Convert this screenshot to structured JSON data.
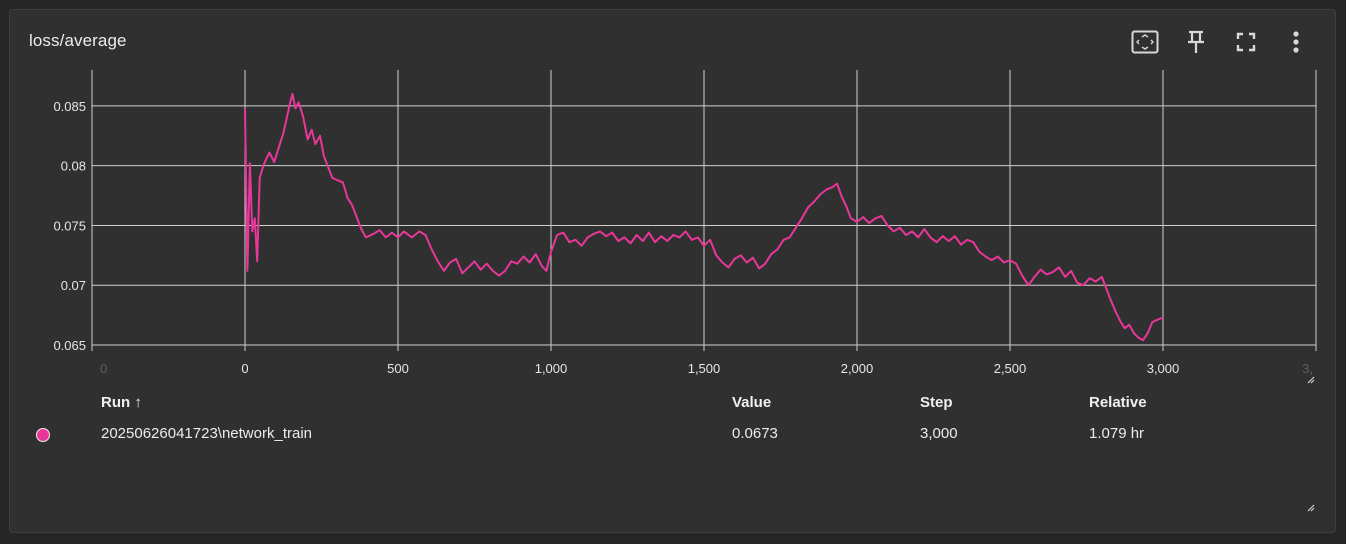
{
  "card": {
    "title": "loss/average"
  },
  "toolbar": {
    "buttons": [
      {
        "icon": "fit-domain-icon"
      },
      {
        "icon": "pin-icon"
      },
      {
        "icon": "fullscreen-icon"
      },
      {
        "icon": "more-vert-icon"
      }
    ]
  },
  "colors": {
    "series": "#e8369a",
    "background": "#303030",
    "grid": "#cfcfcf"
  },
  "chart_data": {
    "type": "line",
    "title": "loss/average",
    "xlabel": "",
    "ylabel": "",
    "xlim": [
      -500,
      3500
    ],
    "ylim": [
      0.0645,
      0.088
    ],
    "x_ticks": [
      0,
      500,
      1000,
      1500,
      2000,
      2500,
      3000
    ],
    "x_tick_labels": [
      "0",
      "500",
      "1,000",
      "1,500",
      "2,000",
      "2,500",
      "3,000"
    ],
    "x_edge_labels": [
      "0",
      "3,"
    ],
    "y_ticks": [
      0.065,
      0.07,
      0.075,
      0.08,
      0.085
    ],
    "y_tick_labels": [
      "0.065",
      "0.07",
      "0.075",
      "0.08",
      "0.085"
    ],
    "grid": true,
    "series": [
      {
        "name": "20250626041723\\network_train",
        "color": "#e8369a",
        "points": [
          [
            0,
            0.0848
          ],
          [
            8,
            0.0712
          ],
          [
            16,
            0.0802
          ],
          [
            24,
            0.0745
          ],
          [
            32,
            0.0756
          ],
          [
            40,
            0.072
          ],
          [
            48,
            0.079
          ],
          [
            60,
            0.08
          ],
          [
            70,
            0.0806
          ],
          [
            80,
            0.0811
          ],
          [
            95,
            0.0803
          ],
          [
            110,
            0.0815
          ],
          [
            125,
            0.0827
          ],
          [
            135,
            0.0838
          ],
          [
            145,
            0.085
          ],
          [
            155,
            0.086
          ],
          [
            165,
            0.0848
          ],
          [
            175,
            0.0853
          ],
          [
            190,
            0.0841
          ],
          [
            205,
            0.0822
          ],
          [
            218,
            0.083
          ],
          [
            230,
            0.0818
          ],
          [
            245,
            0.0825
          ],
          [
            258,
            0.0808
          ],
          [
            270,
            0.08
          ],
          [
            285,
            0.079
          ],
          [
            300,
            0.0788
          ],
          [
            320,
            0.0786
          ],
          [
            335,
            0.0773
          ],
          [
            350,
            0.0767
          ],
          [
            365,
            0.0757
          ],
          [
            380,
            0.0747
          ],
          [
            395,
            0.074
          ],
          [
            420,
            0.0743
          ],
          [
            440,
            0.0746
          ],
          [
            460,
            0.074
          ],
          [
            480,
            0.0744
          ],
          [
            500,
            0.074
          ],
          [
            520,
            0.0745
          ],
          [
            545,
            0.074
          ],
          [
            570,
            0.0745
          ],
          [
            590,
            0.0742
          ],
          [
            610,
            0.073
          ],
          [
            630,
            0.072
          ],
          [
            650,
            0.0712
          ],
          [
            670,
            0.0719
          ],
          [
            690,
            0.0722
          ],
          [
            710,
            0.071
          ],
          [
            730,
            0.0715
          ],
          [
            750,
            0.072
          ],
          [
            770,
            0.0713
          ],
          [
            790,
            0.0718
          ],
          [
            810,
            0.0712
          ],
          [
            830,
            0.0708
          ],
          [
            850,
            0.0712
          ],
          [
            870,
            0.072
          ],
          [
            890,
            0.0718
          ],
          [
            910,
            0.0724
          ],
          [
            930,
            0.0719
          ],
          [
            950,
            0.0726
          ],
          [
            970,
            0.0716
          ],
          [
            985,
            0.0712
          ],
          [
            1000,
            0.0728
          ],
          [
            1020,
            0.0742
          ],
          [
            1040,
            0.0744
          ],
          [
            1060,
            0.0736
          ],
          [
            1080,
            0.0738
          ],
          [
            1100,
            0.0733
          ],
          [
            1120,
            0.074
          ],
          [
            1140,
            0.0743
          ],
          [
            1160,
            0.0745
          ],
          [
            1180,
            0.0741
          ],
          [
            1200,
            0.0744
          ],
          [
            1220,
            0.0737
          ],
          [
            1240,
            0.074
          ],
          [
            1260,
            0.0735
          ],
          [
            1280,
            0.0742
          ],
          [
            1300,
            0.0737
          ],
          [
            1320,
            0.0744
          ],
          [
            1340,
            0.0736
          ],
          [
            1360,
            0.0741
          ],
          [
            1380,
            0.0737
          ],
          [
            1400,
            0.0742
          ],
          [
            1420,
            0.074
          ],
          [
            1440,
            0.0745
          ],
          [
            1460,
            0.0738
          ],
          [
            1480,
            0.074
          ],
          [
            1500,
            0.0733
          ],
          [
            1520,
            0.0738
          ],
          [
            1540,
            0.0725
          ],
          [
            1560,
            0.0719
          ],
          [
            1580,
            0.0715
          ],
          [
            1600,
            0.0722
          ],
          [
            1620,
            0.0725
          ],
          [
            1640,
            0.0719
          ],
          [
            1660,
            0.0723
          ],
          [
            1680,
            0.0714
          ],
          [
            1700,
            0.0718
          ],
          [
            1720,
            0.0726
          ],
          [
            1740,
            0.073
          ],
          [
            1760,
            0.0738
          ],
          [
            1780,
            0.074
          ],
          [
            1800,
            0.0748
          ],
          [
            1820,
            0.0756
          ],
          [
            1840,
            0.0765
          ],
          [
            1860,
            0.077
          ],
          [
            1880,
            0.0776
          ],
          [
            1900,
            0.078
          ],
          [
            1920,
            0.0782
          ],
          [
            1935,
            0.0785
          ],
          [
            1950,
            0.0774
          ],
          [
            1965,
            0.0766
          ],
          [
            1980,
            0.0756
          ],
          [
            2000,
            0.0753
          ],
          [
            2020,
            0.0757
          ],
          [
            2040,
            0.0752
          ],
          [
            2060,
            0.0756
          ],
          [
            2080,
            0.0758
          ],
          [
            2100,
            0.075
          ],
          [
            2120,
            0.0745
          ],
          [
            2140,
            0.0748
          ],
          [
            2160,
            0.0742
          ],
          [
            2180,
            0.0745
          ],
          [
            2200,
            0.074
          ],
          [
            2220,
            0.0747
          ],
          [
            2240,
            0.074
          ],
          [
            2260,
            0.0736
          ],
          [
            2280,
            0.0741
          ],
          [
            2300,
            0.0737
          ],
          [
            2320,
            0.0741
          ],
          [
            2340,
            0.0734
          ],
          [
            2360,
            0.0738
          ],
          [
            2380,
            0.0736
          ],
          [
            2400,
            0.0728
          ],
          [
            2420,
            0.0724
          ],
          [
            2440,
            0.0721
          ],
          [
            2460,
            0.0724
          ],
          [
            2480,
            0.0719
          ],
          [
            2500,
            0.0721
          ],
          [
            2520,
            0.0718
          ],
          [
            2540,
            0.0708
          ],
          [
            2560,
            0.07
          ],
          [
            2580,
            0.0707
          ],
          [
            2600,
            0.0713
          ],
          [
            2620,
            0.0709
          ],
          [
            2640,
            0.0711
          ],
          [
            2660,
            0.0715
          ],
          [
            2680,
            0.0707
          ],
          [
            2700,
            0.0712
          ],
          [
            2720,
            0.0702
          ],
          [
            2740,
            0.07
          ],
          [
            2760,
            0.0706
          ],
          [
            2780,
            0.0703
          ],
          [
            2800,
            0.0707
          ],
          [
            2815,
            0.0697
          ],
          [
            2830,
            0.0687
          ],
          [
            2845,
            0.0678
          ],
          [
            2860,
            0.067
          ],
          [
            2875,
            0.0664
          ],
          [
            2890,
            0.0667
          ],
          [
            2905,
            0.066
          ],
          [
            2920,
            0.0656
          ],
          [
            2935,
            0.0654
          ],
          [
            2950,
            0.066
          ],
          [
            2965,
            0.0669
          ],
          [
            2980,
            0.0671
          ],
          [
            3000,
            0.0673
          ]
        ]
      }
    ]
  },
  "table": {
    "headers": {
      "run": "Run ↑",
      "value": "Value",
      "step": "Step",
      "relative": "Relative"
    },
    "rows": [
      {
        "run": "20250626041723\\network_train",
        "value": "0.0673",
        "step": "3,000",
        "relative": "1.079 hr",
        "color": "#e8369a"
      }
    ]
  }
}
